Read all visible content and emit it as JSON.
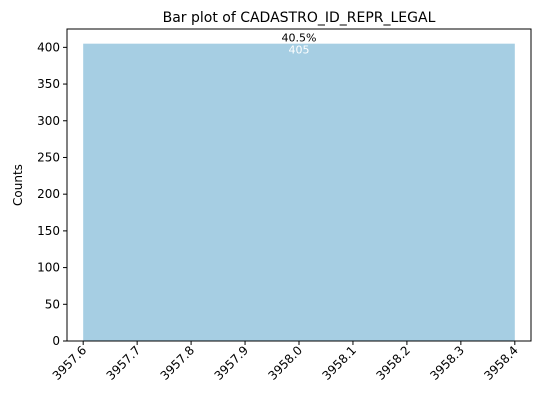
{
  "chart_data": {
    "type": "bar",
    "title": "Bar plot of CADASTRO_ID_REPR_LEGAL",
    "xlabel": "",
    "ylabel": "Counts",
    "x_range": [
      3957.6,
      3958.4
    ],
    "xticks": [
      "3957.6",
      "3957.7",
      "3957.8",
      "3957.9",
      "3958.0",
      "3958.1",
      "3958.2",
      "3958.3",
      "3958.4"
    ],
    "ylim": [
      0,
      425
    ],
    "yticks": [
      "0",
      "50",
      "100",
      "150",
      "200",
      "250",
      "300",
      "350",
      "400"
    ],
    "bars": [
      {
        "x_start": 3957.6,
        "x_end": 3958.4,
        "value": 405,
        "value_label": "405",
        "percent_label": "40.5%"
      }
    ],
    "bar_color": "#a6cee3",
    "grid": false,
    "legend": false
  }
}
